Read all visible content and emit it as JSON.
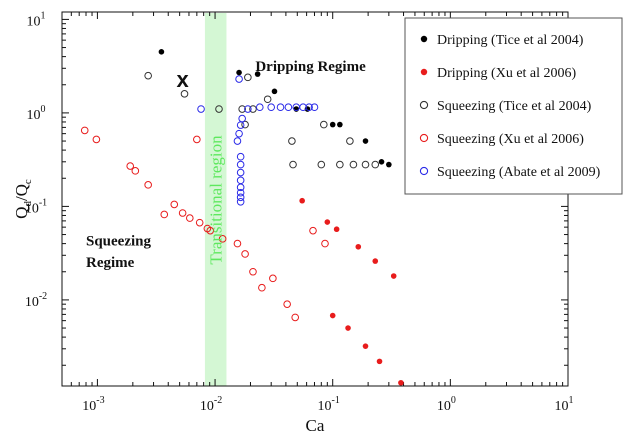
{
  "chart_data": {
    "type": "scatter",
    "xscale": "log",
    "yscale": "log",
    "xlim": [
      0.0005,
      10
    ],
    "ylim": [
      0.0012,
      12
    ],
    "xlabel": "Ca",
    "ylabel_main": "Q",
    "ylabel_sub1": "d",
    "ylabel_slash": "/Q",
    "ylabel_sub2": "c",
    "xticks": [
      {
        "v": 0.001,
        "base": "10",
        "exp": "-3"
      },
      {
        "v": 0.01,
        "base": "10",
        "exp": "-2"
      },
      {
        "v": 0.1,
        "base": "10",
        "exp": "-1"
      },
      {
        "v": 1,
        "base": "10",
        "exp": "0"
      },
      {
        "v": 10,
        "base": "10",
        "exp": "1"
      }
    ],
    "yticks": [
      {
        "v": 0.01,
        "base": "10",
        "exp": "-2"
      },
      {
        "v": 0.1,
        "base": "10",
        "exp": "-1"
      },
      {
        "v": 1,
        "base": "10",
        "exp": "0"
      },
      {
        "v": 10,
        "base": "10",
        "exp": "1"
      }
    ],
    "transitional_region": {
      "label": "Transitional region",
      "x_range": [
        0.0082,
        0.0125
      ],
      "color": "#d4f7d4",
      "text_color": "#5ee85e"
    },
    "annotations": [
      {
        "text": "Dripping Regime",
        "x": 0.022,
        "y": 2.8
      },
      {
        "text": "Squeezing",
        "x": 0.0008,
        "y": 0.038
      },
      {
        "text": "Regime",
        "x": 0.0008,
        "y": 0.0225
      }
    ],
    "marker_x": {
      "text": "x",
      "x": 0.0053,
      "y": 2.3
    },
    "series": [
      {
        "name": "Dripping (Tice et al 2004)",
        "marker": "filled",
        "color": "#000000",
        "points": [
          [
            0.0035,
            4.5
          ],
          [
            0.016,
            2.7
          ],
          [
            0.023,
            2.6
          ],
          [
            0.032,
            1.7
          ],
          [
            0.049,
            1.1
          ],
          [
            0.061,
            1.1
          ],
          [
            0.1,
            0.75
          ],
          [
            0.115,
            0.75
          ],
          [
            0.19,
            0.5
          ],
          [
            0.26,
            0.3
          ],
          [
            0.3,
            0.28
          ]
        ]
      },
      {
        "name": "Dripping (Xu et al 2006)",
        "marker": "filled",
        "color": "#e81c1c",
        "points": [
          [
            0.055,
            0.115
          ],
          [
            0.09,
            0.068
          ],
          [
            0.108,
            0.057
          ],
          [
            0.165,
            0.037
          ],
          [
            0.23,
            0.026
          ],
          [
            0.33,
            0.018
          ],
          [
            0.1,
            0.0068
          ],
          [
            0.135,
            0.005
          ],
          [
            0.19,
            0.0032
          ],
          [
            0.25,
            0.0022
          ],
          [
            0.38,
            0.0013
          ]
        ]
      },
      {
        "name": "Squeezing (Tice et al 2004)",
        "marker": "open",
        "color": "#333333",
        "points": [
          [
            0.0027,
            2.5
          ],
          [
            0.0055,
            1.6
          ],
          [
            0.0108,
            1.1
          ],
          [
            0.017,
            1.1
          ],
          [
            0.018,
            0.75
          ],
          [
            0.019,
            2.4
          ],
          [
            0.021,
            1.1
          ],
          [
            0.028,
            1.4
          ],
          [
            0.045,
            0.5
          ],
          [
            0.046,
            0.28
          ],
          [
            0.084,
            0.75
          ],
          [
            0.08,
            0.28
          ],
          [
            0.115,
            0.28
          ],
          [
            0.15,
            0.28
          ],
          [
            0.14,
            0.5
          ],
          [
            0.19,
            0.28
          ],
          [
            0.23,
            0.28
          ]
        ]
      },
      {
        "name": "Squeezing (Xu et al 2006)",
        "marker": "open",
        "color": "#e81c1c",
        "points": [
          [
            0.00078,
            0.65
          ],
          [
            0.00098,
            0.52
          ],
          [
            0.0019,
            0.27
          ],
          [
            0.0021,
            0.24
          ],
          [
            0.0027,
            0.17
          ],
          [
            0.0037,
            0.082
          ],
          [
            0.0045,
            0.105
          ],
          [
            0.0053,
            0.085
          ],
          [
            0.0061,
            0.075
          ],
          [
            0.007,
            0.52
          ],
          [
            0.0074,
            0.067
          ],
          [
            0.0086,
            0.058
          ],
          [
            0.0091,
            0.055
          ],
          [
            0.0116,
            0.045
          ],
          [
            0.0155,
            0.04
          ],
          [
            0.018,
            0.031
          ],
          [
            0.021,
            0.02
          ],
          [
            0.025,
            0.0135
          ],
          [
            0.031,
            0.017
          ],
          [
            0.041,
            0.009
          ],
          [
            0.048,
            0.0065
          ],
          [
            0.068,
            0.055
          ],
          [
            0.086,
            0.04
          ]
        ]
      },
      {
        "name": "Squeezing (Abate et al 2009)",
        "marker": "open",
        "color": "#2a2ae8",
        "points": [
          [
            0.0076,
            1.1
          ],
          [
            0.016,
            2.3
          ],
          [
            0.0155,
            0.5
          ],
          [
            0.016,
            0.6
          ],
          [
            0.0165,
            0.74
          ],
          [
            0.017,
            0.87
          ],
          [
            0.0165,
            0.34
          ],
          [
            0.0165,
            0.28
          ],
          [
            0.0165,
            0.23
          ],
          [
            0.0165,
            0.19
          ],
          [
            0.0165,
            0.16
          ],
          [
            0.0165,
            0.14
          ],
          [
            0.0165,
            0.125
          ],
          [
            0.0165,
            0.112
          ],
          [
            0.019,
            1.1
          ],
          [
            0.024,
            1.15
          ],
          [
            0.03,
            1.15
          ],
          [
            0.036,
            1.15
          ],
          [
            0.042,
            1.15
          ],
          [
            0.049,
            1.15
          ],
          [
            0.056,
            1.15
          ],
          [
            0.063,
            1.15
          ],
          [
            0.07,
            1.15
          ]
        ]
      }
    ]
  }
}
